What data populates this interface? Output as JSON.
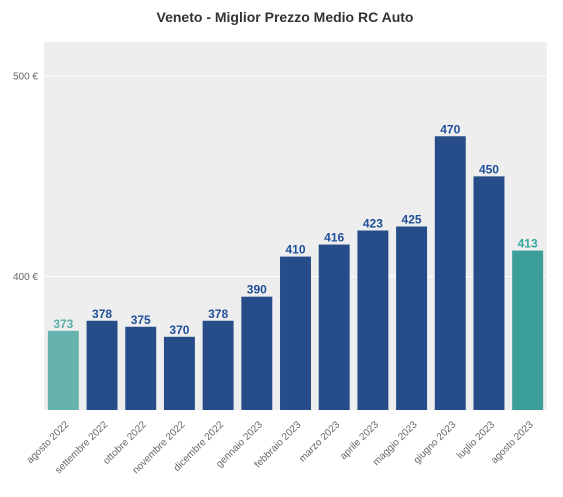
{
  "chart_data": {
    "type": "bar",
    "title": "Veneto - Miglior Prezzo Medio RC Auto",
    "xlabel": "",
    "ylabel": "",
    "categories": [
      "agosto 2022",
      "settembre 2022",
      "ottobre 2022",
      "novembre 2022",
      "dicembre 2022",
      "gennaio 2023",
      "febbraio 2023",
      "marzo 2023",
      "aprile 2023",
      "maggio 2023",
      "giugno 2023",
      "luglio 2023",
      "agosto 2023"
    ],
    "values": [
      373,
      378,
      375,
      370,
      378,
      390,
      410,
      416,
      423,
      425,
      470,
      450,
      413
    ],
    "data_labels": [
      "373",
      "378",
      "375",
      "370",
      "378",
      "390",
      "410",
      "416",
      "423",
      "425",
      "470",
      "450",
      "413"
    ],
    "yticks": [
      400,
      500
    ],
    "ytick_labels": [
      "400 €",
      "500 €"
    ],
    "ylim": [
      333.5,
      517
    ],
    "grid": true,
    "legend": "none",
    "colors": {
      "default_bar": "#264d8a",
      "default_label": "#1f4e9a",
      "first_bar": "#66b3ae",
      "first_label": "#5aaea8",
      "last_bar": "#3b9e98",
      "last_label": "#32a89f",
      "plot_bg": "#eeeeee",
      "grid": "#ffffff"
    }
  }
}
